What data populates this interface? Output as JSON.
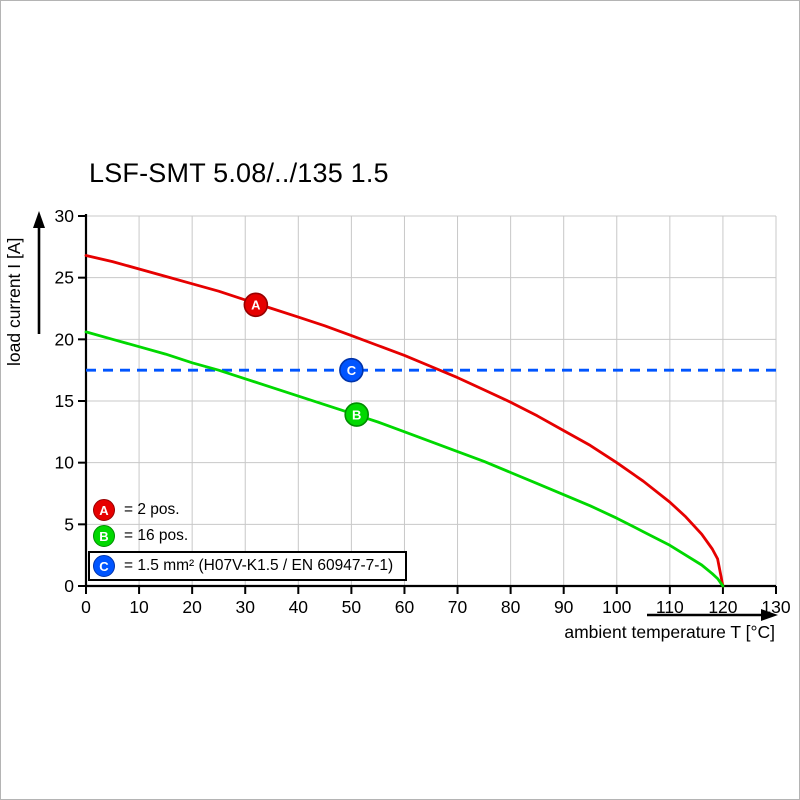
{
  "title": "LSF-SMT 5.08/../135 1.5",
  "chart_data": {
    "type": "line",
    "title": "LSF-SMT 5.08/../135 1.5",
    "xlabel": "ambient temperature T [°C]",
    "ylabel": "load current I [A]",
    "xlim": [
      0,
      130
    ],
    "ylim": [
      0,
      30
    ],
    "xticks": [
      0,
      10,
      20,
      30,
      40,
      50,
      60,
      70,
      80,
      90,
      100,
      110,
      120,
      130
    ],
    "yticks": [
      0,
      5,
      10,
      15,
      20,
      25,
      30
    ],
    "grid": true,
    "grid_color": "#c8c8c8",
    "axis_color": "#000000",
    "dashed_reference_current_A": 17.5,
    "series": [
      {
        "name": "A",
        "label": "= 2 pos.",
        "color": "#e60000",
        "edge": "#960000",
        "marker": {
          "x": 32,
          "y": 22.8
        },
        "x": [
          0,
          5,
          10,
          15,
          20,
          25,
          30,
          35,
          40,
          45,
          50,
          55,
          60,
          65,
          70,
          75,
          80,
          85,
          90,
          95,
          100,
          105,
          110,
          113,
          116,
          118,
          119,
          120
        ],
        "y": [
          26.8,
          26.3,
          25.7,
          25.1,
          24.5,
          23.9,
          23.2,
          22.5,
          21.8,
          21.1,
          20.3,
          19.5,
          18.7,
          17.8,
          16.9,
          15.9,
          14.9,
          13.8,
          12.6,
          11.4,
          10.0,
          8.5,
          6.8,
          5.6,
          4.2,
          3.0,
          2.2,
          0
        ]
      },
      {
        "name": "B",
        "label": "= 16 pos.",
        "color": "#00d800",
        "edge": "#008c00",
        "marker": {
          "x": 51,
          "y": 13.9
        },
        "x": [
          0,
          5,
          10,
          15,
          20,
          25,
          30,
          35,
          40,
          45,
          50,
          55,
          60,
          65,
          70,
          75,
          80,
          85,
          90,
          95,
          100,
          105,
          110,
          113,
          116,
          118,
          119,
          120
        ],
        "y": [
          20.6,
          20.0,
          19.4,
          18.8,
          18.1,
          17.5,
          16.8,
          16.1,
          15.4,
          14.7,
          14.0,
          13.3,
          12.5,
          11.7,
          10.9,
          10.1,
          9.2,
          8.3,
          7.4,
          6.5,
          5.5,
          4.4,
          3.3,
          2.5,
          1.7,
          1.0,
          0.6,
          0
        ]
      },
      {
        "name": "C",
        "label": "= 1.5 mm² (H07V-K1.5 / EN 60947-7-1)",
        "color": "#0055ff",
        "edge": "#0033aa",
        "style": "dashed",
        "y_const": 17.5,
        "marker": {
          "x": 50,
          "y": 17.5
        }
      }
    ]
  }
}
